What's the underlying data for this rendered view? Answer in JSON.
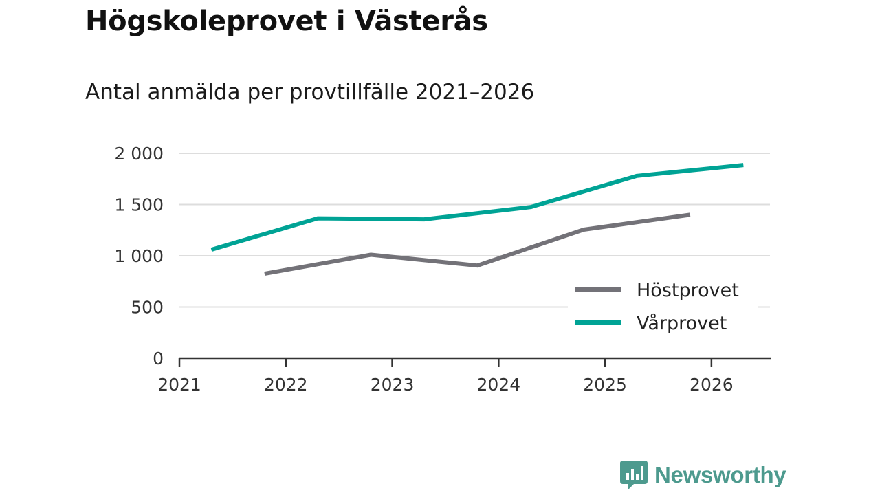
{
  "title": "Högskoleprovet i Västerås",
  "subtitle": "Antal anmälda per provtillfälle 2021–2026",
  "brand": "Newsworthy",
  "colors": {
    "host": "#737278",
    "var": "#00a395",
    "grid": "#dddddd",
    "axis": "#333333"
  },
  "chart_data": {
    "type": "line",
    "title": "Antal anmälda per provtillfälle 2021–2026",
    "xlabel": "",
    "ylabel": "",
    "xlim": [
      2021,
      2026.55
    ],
    "ylim": [
      0,
      2000
    ],
    "x_ticks": [
      2021,
      2022,
      2023,
      2024,
      2025,
      2026
    ],
    "x_tick_labels": [
      "2021",
      "2022",
      "2023",
      "2024",
      "2025",
      "2026"
    ],
    "y_ticks": [
      0,
      500,
      1000,
      1500,
      2000
    ],
    "y_tick_labels": [
      "0",
      "500",
      "1 000",
      "1 500",
      "2 000"
    ],
    "grid": true,
    "legend_position": "bottom-right",
    "series": [
      {
        "name": "Höstprovet",
        "color": "#737278",
        "x": [
          2021.8,
          2022.8,
          2023.8,
          2024.8,
          2025.8
        ],
        "values": [
          825,
          1010,
          905,
          1255,
          1400
        ]
      },
      {
        "name": "Vårprovet",
        "color": "#00a395",
        "x": [
          2021.3,
          2022.3,
          2023.3,
          2024.3,
          2025.3,
          2026.3
        ],
        "values": [
          1060,
          1365,
          1355,
          1475,
          1780,
          1885
        ]
      }
    ]
  }
}
